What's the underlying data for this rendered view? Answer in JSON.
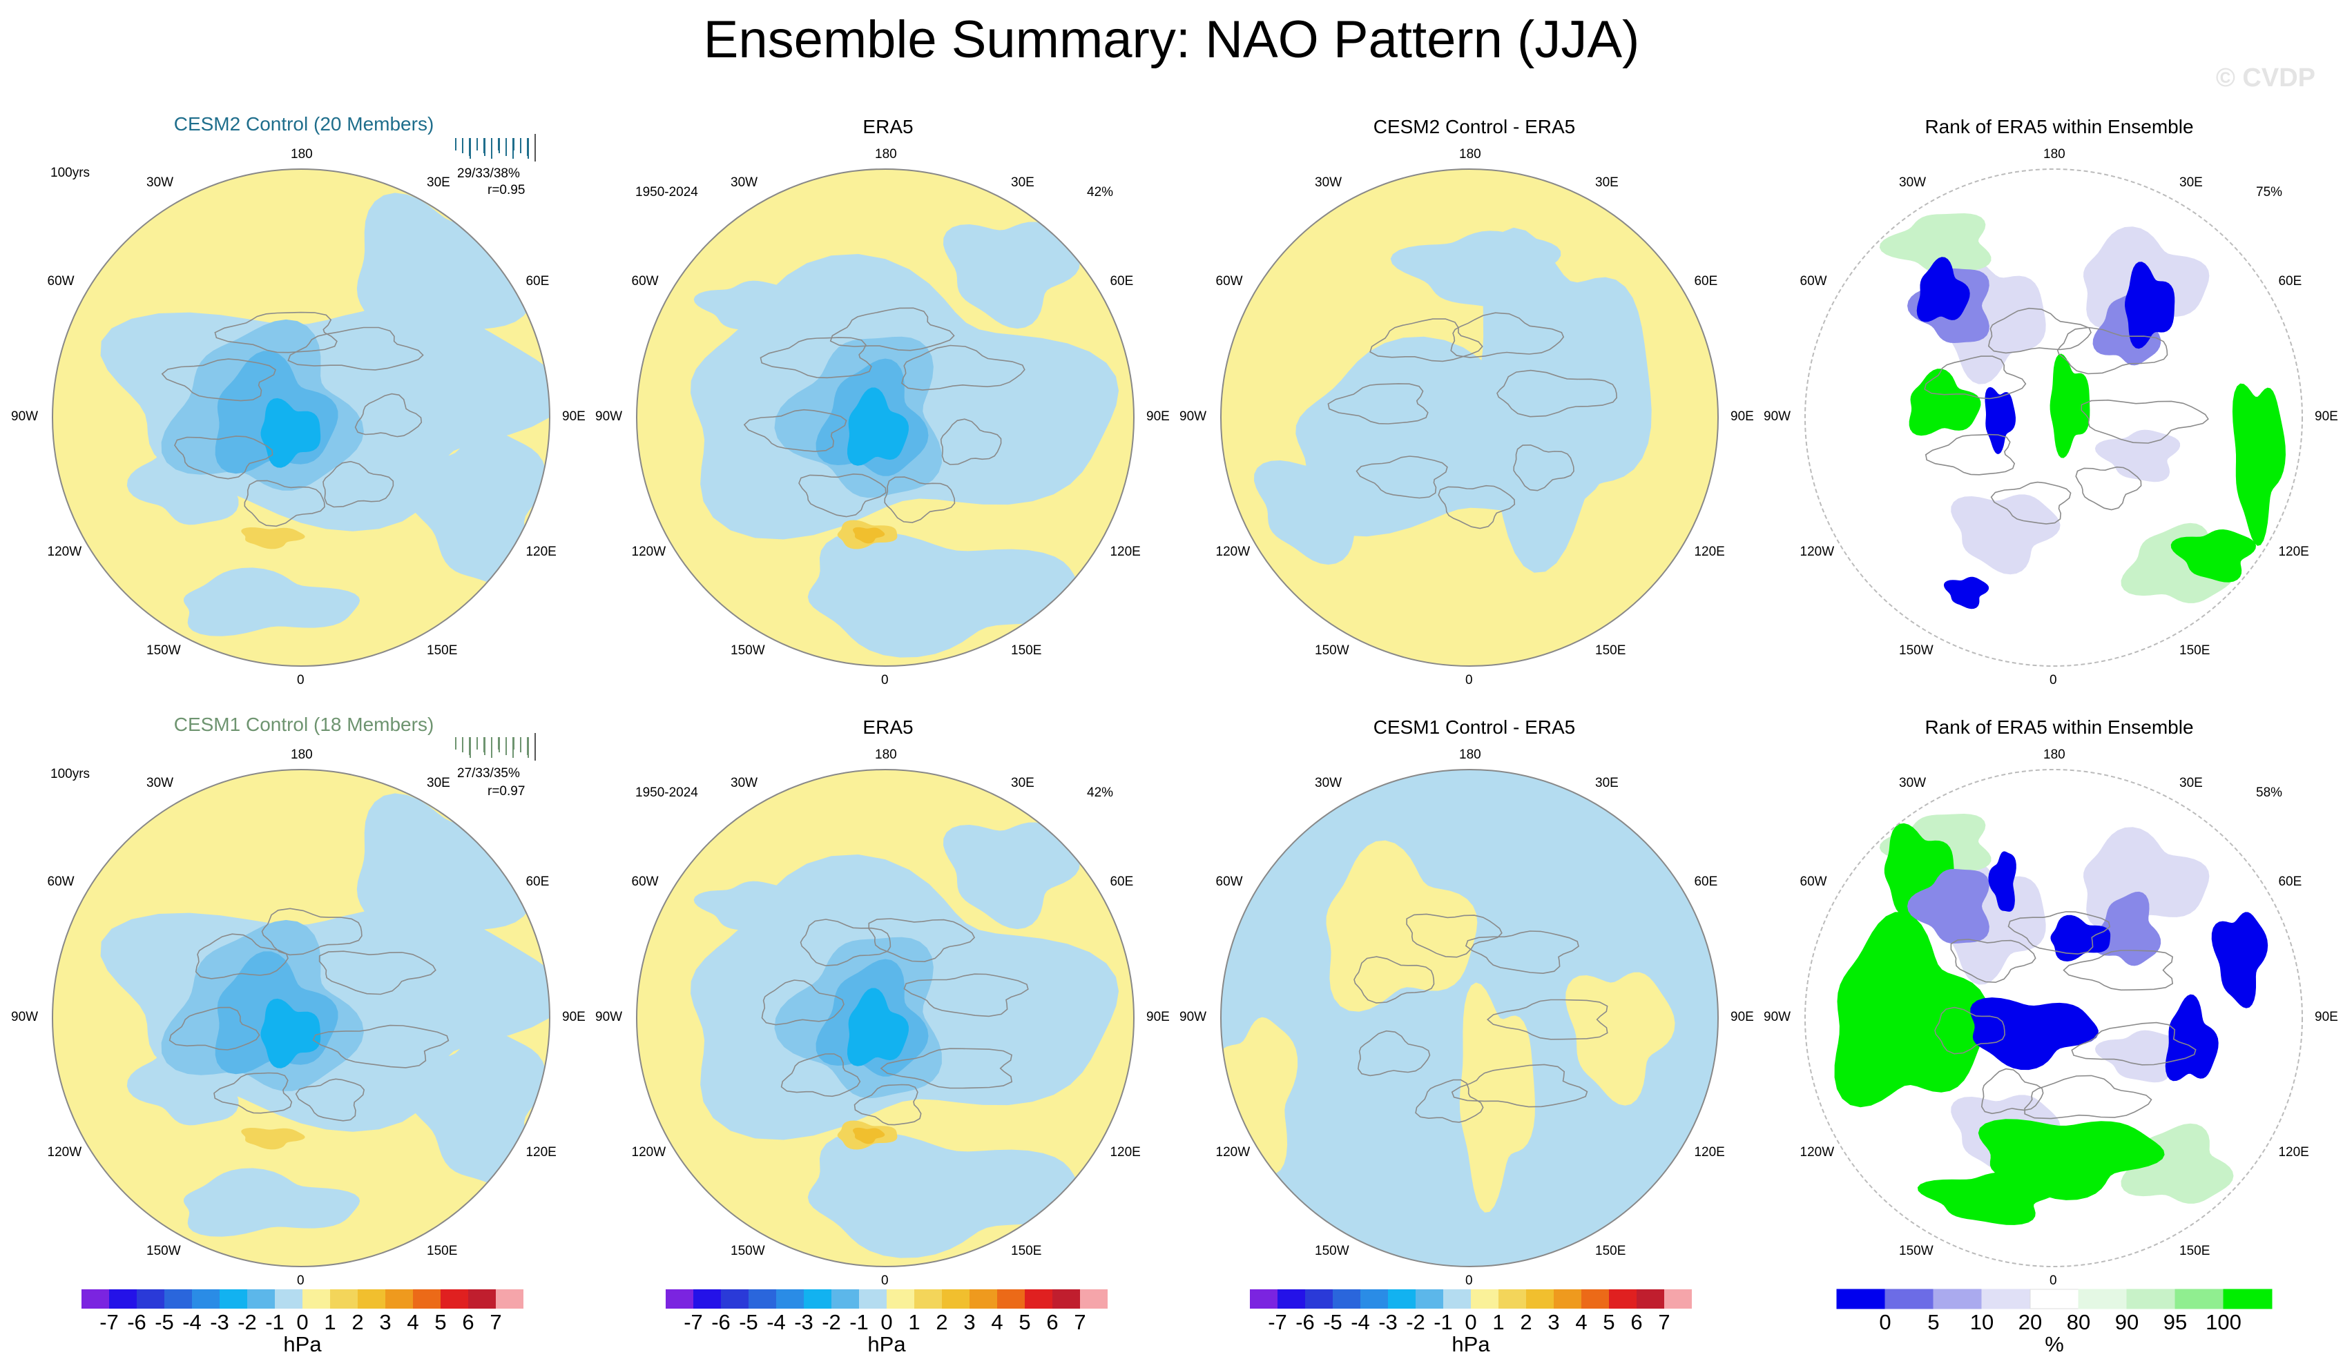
{
  "title": "Ensemble Summary: NAO Pattern (JJA)",
  "watermark": "© CVDP",
  "colors": {
    "cesm2": "#1f6e8c",
    "cesm1": "#6e9470",
    "yellow": "#faf199",
    "lightblue": "#b4dcf0",
    "blue2": "#87c8ec",
    "blue3": "#5cb7ea",
    "blue4": "#12b2f0",
    "orange1": "#f3d55a",
    "orange2": "#f1bf2e",
    "rank_blue": "#0000ee",
    "rank_midblue": "#8888e8",
    "rank_lightblue": "#dcdcf4",
    "rank_green": "#00ee00",
    "rank_lightgreen": "#c8f2c8"
  },
  "panels": [
    {
      "title": "CESM2 Control (20 Members)",
      "left_label": "100yrs",
      "stats": "29/33/38%",
      "r": "r=0.95",
      "title_color": "cesm2"
    },
    {
      "title": "ERA5",
      "left_label": "1950-2024",
      "right_label": "42%"
    },
    {
      "title": "CESM2 Control - ERA5"
    },
    {
      "title": "Rank of ERA5 within Ensemble",
      "right_label": "75%"
    },
    {
      "title": "CESM1 Control (18 Members)",
      "left_label": "100yrs",
      "stats": "27/33/35%",
      "r": "r=0.97",
      "title_color": "cesm1"
    },
    {
      "title": "ERA5",
      "left_label": "1950-2024",
      "right_label": "42%"
    },
    {
      "title": "CESM1 Control - ERA5"
    },
    {
      "title": "Rank of ERA5 within Ensemble",
      "right_label": "58%"
    }
  ],
  "map_labels": {
    "top": "180",
    "bottom": "0",
    "left_side": [
      "150W",
      "120W",
      "90W",
      "60W",
      "30W"
    ],
    "right_side": [
      "150E",
      "120E",
      "90E",
      "60E",
      "30E"
    ]
  },
  "chart_data": {
    "type": "polar-contour-maps",
    "projection": "North polar stereographic",
    "variable": "NAO pattern (sea level pressure regression)",
    "season": "JJA",
    "units": "hPa",
    "contour_levels": [
      -7,
      -6,
      -5,
      -4,
      -3,
      -2,
      -1,
      0,
      1,
      2,
      3,
      4,
      5,
      6,
      7
    ],
    "colorbar_colors": [
      "#7b24e0",
      "#2412e8",
      "#2a3ad8",
      "#2a66dc",
      "#2a8ce6",
      "#12b2f0",
      "#5cb7ea",
      "#b4dcf0",
      "#faf199",
      "#f3d55a",
      "#f1bf2e",
      "#ef9a1e",
      "#ec6a18",
      "#e02020",
      "#c01e2e",
      "#f5a5aa"
    ],
    "colorbar_labels": [
      "-7",
      "-6",
      "-5",
      "-4",
      "-3",
      "-2",
      "-1",
      "0",
      "1",
      "2",
      "3",
      "4",
      "5",
      "6",
      "7"
    ],
    "colorbar_unit": "hPa",
    "rank_levels": [
      "0",
      "5",
      "10",
      "20",
      "80",
      "90",
      "95",
      "100"
    ],
    "rank_colors": [
      "#0000ee",
      "#6c6ce6",
      "#aaaaee",
      "#e0e0f6",
      "#ffffff",
      "#e4f8e4",
      "#c8f2c8",
      "#90ee90",
      "#00ee00"
    ],
    "rank_unit": "%",
    "rows": [
      {
        "model": "CESM2 Control",
        "members": 20,
        "years": "100yrs",
        "pct_variance_min_mean_max": "29/33/38%",
        "pattern_corr": 0.95
      },
      {
        "model": "CESM1 Control",
        "members": 18,
        "years": "100yrs",
        "pct_variance_min_mean_max": "27/33/35%",
        "pattern_corr": 0.97
      }
    ],
    "observations": {
      "dataset": "ERA5",
      "period": "1950-2024",
      "pct_variance": 42
    },
    "rank_pct_significant": {
      "cesm2": 75,
      "cesm1": 58
    }
  }
}
